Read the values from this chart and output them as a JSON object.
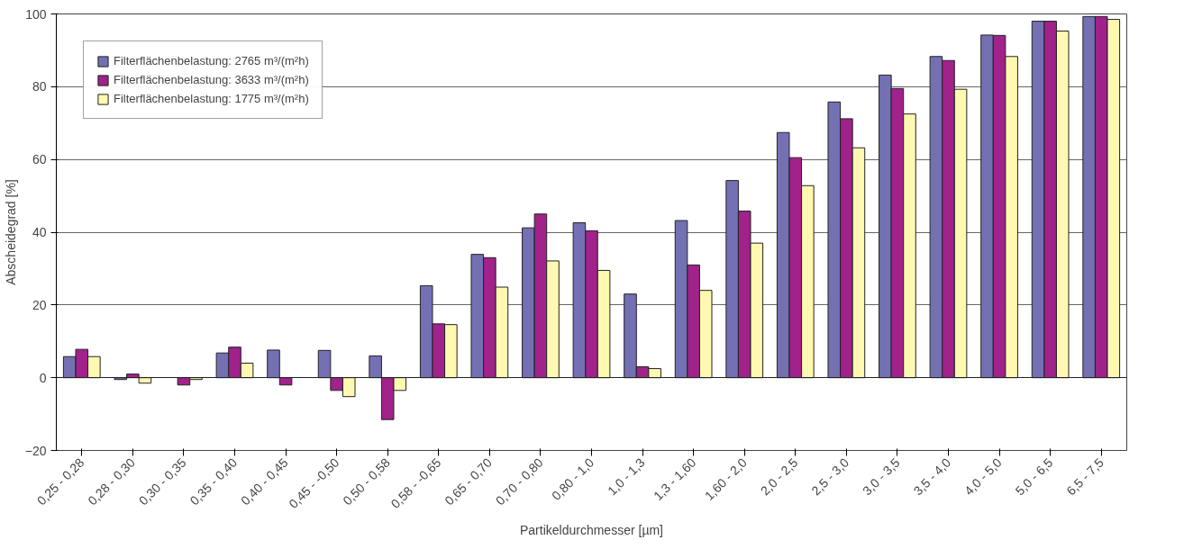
{
  "chart_data": {
    "type": "bar",
    "xlabel": "Partikeldurchmesser [µm]",
    "ylabel": "Abscheidegrad [%]",
    "categories": [
      "0,25 - 0,28",
      "0,28 - 0,30",
      "0,30 - 0,35",
      "0,35 - 0,40",
      "0,40 - 0,45",
      "0,45 - -0,50",
      "0,50 - 0,58",
      "0,58 - -0,65",
      "0,65 - 0,70",
      "0,70 - 0,80",
      "0,80 - 1,0",
      "1,0 - 1,3",
      "1,3 - 1,60",
      "1,60 - 2,0",
      "2,0 - 2,5",
      "2,5 - 3,0",
      "3,0 - 3,5",
      "3,5 - 4,0",
      "4,0 - 5,0",
      "5,0 - 6,5",
      "6,5 - 7,5"
    ],
    "series": [
      {
        "name": "Filterflächenbelastung: 2765 m³/(m²h)",
        "color": "#7470b4",
        "values": [
          5.8,
          -0.5,
          null,
          6.8,
          7.6,
          7.5,
          6,
          25.3,
          33.9,
          41.2,
          42.6,
          23,
          43.2,
          54.2,
          67.4,
          75.8,
          83.2,
          88.3,
          94.2,
          98,
          99.3
        ]
      },
      {
        "name": "Filterflächenbelastung: 3633 m³/(m²h)",
        "color": "#a0228a",
        "values": [
          7.8,
          1,
          -2,
          8.4,
          -2,
          -3.5,
          -11.5,
          14.8,
          33,
          45,
          40.4,
          3,
          31,
          45.8,
          60.5,
          71.2,
          79.5,
          87.2,
          94.1,
          98,
          99.3
        ]
      },
      {
        "name": "Filterflächenbelastung: 1775 m³/(m²h)",
        "color": "#fff8b0",
        "values": [
          5.8,
          -1.5,
          -0.5,
          4,
          null,
          -5.2,
          -3.5,
          14.6,
          24.9,
          32.1,
          29.5,
          2.5,
          24,
          37,
          52.8,
          63.2,
          72.5,
          79.3,
          88.3,
          95.3,
          98.5
        ]
      }
    ],
    "ylim": [
      -20,
      100
    ],
    "yticks": [
      -20,
      0,
      20,
      40,
      60,
      80,
      100
    ],
    "grid": "y",
    "legend": "top left"
  }
}
